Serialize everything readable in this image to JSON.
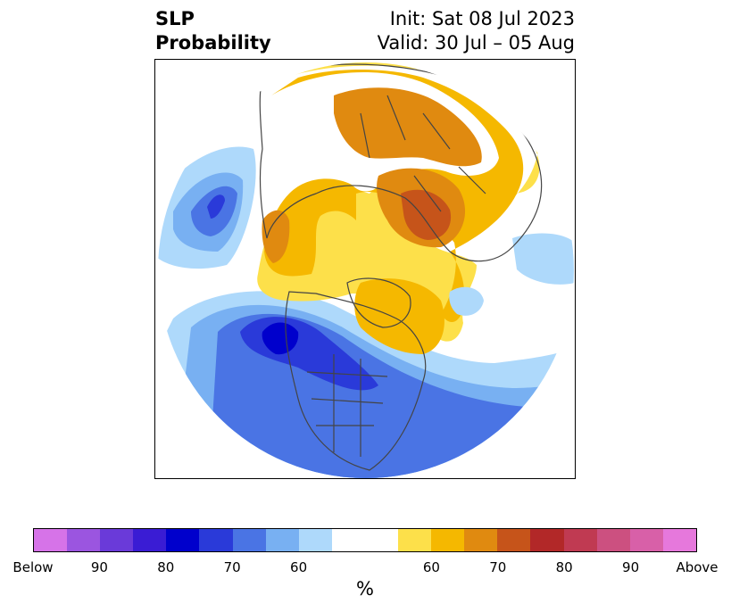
{
  "title": {
    "left_line1": "SLP",
    "left_line2": "Probability",
    "right_line1": "Init: Sat 08 Jul 2023",
    "right_line2": "Valid: 30 Jul – 05 Aug"
  },
  "colorbar": {
    "below_colors": [
      "#d673e8",
      "#9b55e0",
      "#6a3ad9",
      "#3a1cd4",
      "#0000cc",
      "#2a3ad9",
      "#4a74e4",
      "#78b0f2",
      "#aed9fb"
    ],
    "neutral_color": "#ffffff",
    "above_colors": [
      "#fde04a",
      "#f5b800",
      "#e08a10",
      "#c6541a",
      "#b22828",
      "#c03a52",
      "#cc5080",
      "#d860a8",
      "#e678dc"
    ],
    "ticks": [
      {
        "label": "Below"
      },
      {
        "label": "90"
      },
      {
        "label": "80"
      },
      {
        "label": "70"
      },
      {
        "label": "60"
      },
      {
        "label": "60"
      },
      {
        "label": "70"
      },
      {
        "label": "80"
      },
      {
        "label": "90"
      },
      {
        "label": "Above"
      }
    ],
    "unit": "%"
  }
}
